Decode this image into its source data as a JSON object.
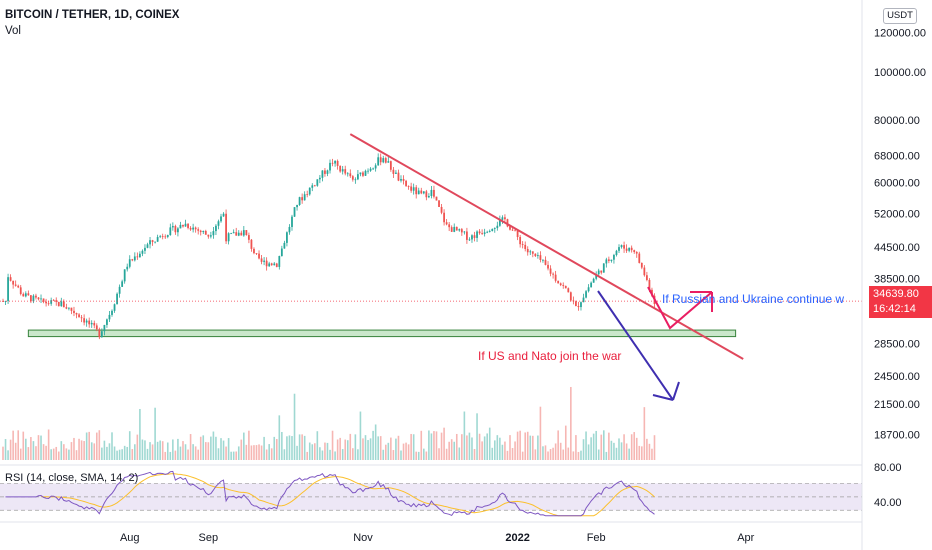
{
  "header": {
    "title": "BITCOIN / TETHER, 1D, COINEX",
    "volume_label": "Vol",
    "currency_unit": "USDT"
  },
  "price_tag": {
    "price": "34639.80",
    "countdown": "16:42:14"
  },
  "annotations": {
    "bull_note": "If Russian and Ukraine continue w",
    "bear_note": "If US and Nato join the war"
  },
  "rsi": {
    "label": "RSI (14, close, SMA, 14, 2)",
    "ticks": [
      "80.00",
      "40.00"
    ]
  },
  "colors": {
    "up": "#26a69a",
    "down": "#ef5350",
    "trendline": "#e0485c",
    "support_fill": "#c8e6c9",
    "support_border": "#2e7d32",
    "bull_arrow": "#e91e63",
    "bear_arrow": "#3f2fb0",
    "bull_text": "#2962ff",
    "bear_text": "#e91e3c",
    "rsi_line": "#7e57c2",
    "rsi_ma": "#fbc02d",
    "rsi_band": "#ede7f6",
    "price_tag_bg": "#f23645"
  },
  "chart_data": {
    "type": "candlestick",
    "title": "BITCOIN / TETHER, 1D, COINEX",
    "y_axis": {
      "scale": "log",
      "ticks": [
        "120000.00",
        "100000.00",
        "80000.00",
        "68000.00",
        "60000.00",
        "52000.00",
        "44500.00",
        "38500.00",
        "28500.00",
        "24500.00",
        "21500.00",
        "18700.00"
      ]
    },
    "x_axis": {
      "ticks": [
        "Aug",
        "Sep",
        "Nov",
        "2022",
        "Feb",
        "Apr"
      ]
    },
    "current_price": 34639.8,
    "price_anchors": [
      [
        "2021-06-14",
        39000
      ],
      [
        "2021-06-20",
        35600
      ],
      [
        "2021-06-27",
        34500
      ],
      [
        "2021-07-05",
        34200
      ],
      [
        "2021-07-12",
        32500
      ],
      [
        "2021-07-20",
        29800
      ],
      [
        "2021-07-25",
        33500
      ],
      [
        "2021-07-31",
        41000
      ],
      [
        "2021-08-07",
        44500
      ],
      [
        "2021-08-14",
        47200
      ],
      [
        "2021-08-23",
        49500
      ],
      [
        "2021-09-01",
        47000
      ],
      [
        "2021-09-07",
        52000
      ],
      [
        "2021-09-08",
        46500
      ],
      [
        "2021-09-15",
        47800
      ],
      [
        "2021-09-21",
        41500
      ],
      [
        "2021-09-28",
        41200
      ],
      [
        "2021-10-06",
        54500
      ],
      [
        "2021-10-15",
        61500
      ],
      [
        "2021-10-20",
        66000
      ],
      [
        "2021-10-28",
        60500
      ],
      [
        "2021-11-09",
        67500
      ],
      [
        "2021-11-16",
        60000
      ],
      [
        "2021-11-24",
        56500
      ],
      [
        "2021-11-28",
        57500
      ],
      [
        "2021-12-04",
        49000
      ],
      [
        "2021-12-13",
        46500
      ],
      [
        "2021-12-27",
        50500
      ],
      [
        "2022-01-05",
        43500
      ],
      [
        "2022-01-10",
        41800
      ],
      [
        "2022-01-21",
        36000
      ],
      [
        "2022-01-24",
        33500
      ],
      [
        "2022-01-31",
        38500
      ],
      [
        "2022-02-10",
        44500
      ],
      [
        "2022-02-16",
        44000
      ],
      [
        "2022-02-22",
        37000
      ],
      [
        "2022-02-24",
        34640
      ]
    ],
    "support_zone": {
      "low": 29400,
      "high": 30300,
      "from": "2021-06-22",
      "to": "2022-03-28"
    },
    "trendline": [
      [
        "2021-10-27",
        75000
      ],
      [
        "2022-03-31",
        26500
      ]
    ],
    "rsi_range": [
      20,
      90
    ]
  }
}
